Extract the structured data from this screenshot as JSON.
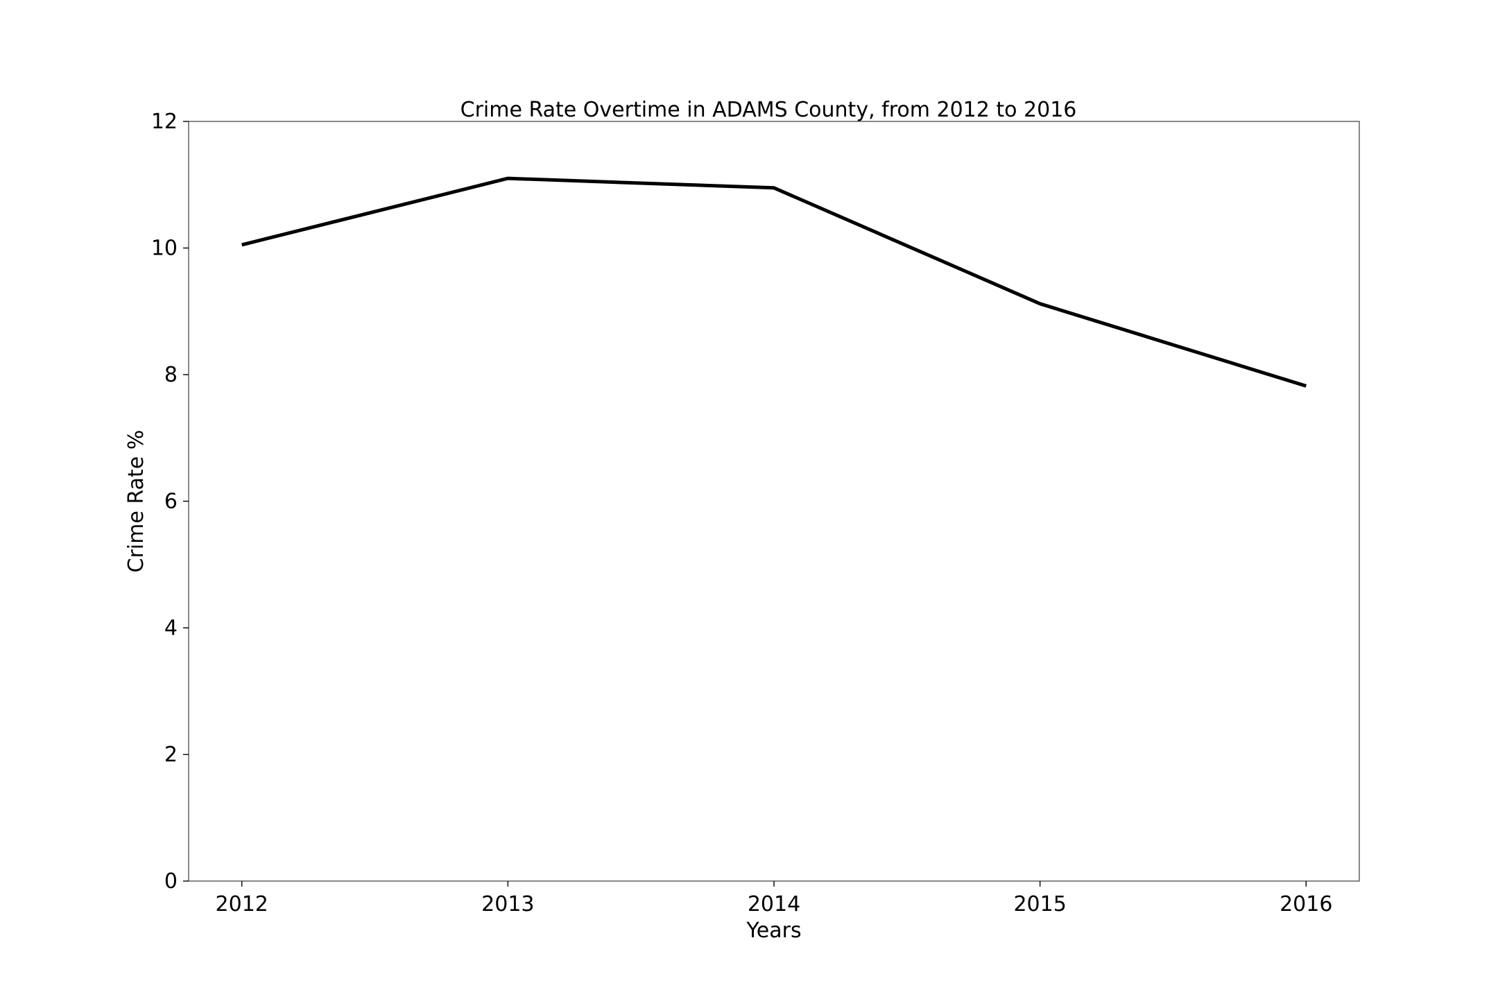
{
  "chart_data": {
    "type": "line",
    "title": "Crime Rate Overtime in ADAMS County, from 2012 to 2016",
    "xlabel": "Years",
    "ylabel": "Crime Rate %",
    "x": [
      2012,
      2013,
      2014,
      2015,
      2016
    ],
    "x_tick_labels": [
      "2012",
      "2013",
      "2014",
      "2015",
      "2016"
    ],
    "xlim": [
      2011.8,
      2016.2
    ],
    "ylim": [
      0,
      12
    ],
    "y_ticks": [
      0,
      2,
      4,
      6,
      8,
      10,
      12
    ],
    "y_tick_labels": [
      "0",
      "2",
      "4",
      "6",
      "8",
      "10",
      "12"
    ],
    "grid": false,
    "series": [
      {
        "name": "Crime Rate",
        "color": "#000000",
        "values": [
          10.05,
          11.1,
          10.95,
          9.12,
          7.82
        ]
      }
    ]
  }
}
